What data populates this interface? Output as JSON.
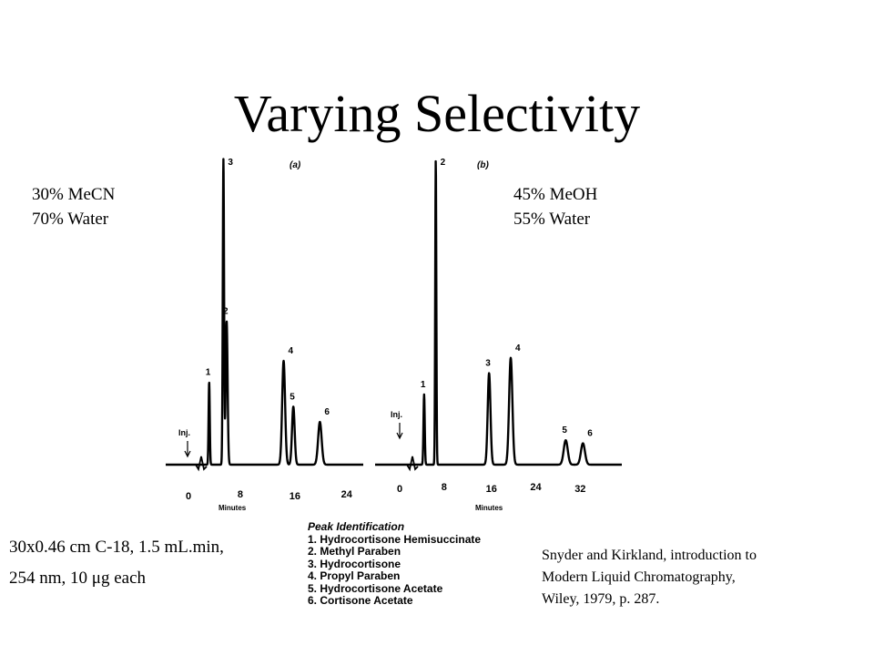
{
  "slide": {
    "title": "Varying Selectivity",
    "conditions_a": [
      "30% MeCN",
      "70% Water"
    ],
    "conditions_b": [
      "45% MeOH",
      "55% Water"
    ],
    "column_info": [
      "30x0.46 cm C-18, 1.5 mL.min,",
      "254 nm, 10 μg each"
    ],
    "reference": [
      "Snyder and Kirkland, introduction to",
      "Modern Liquid Chromatography,",
      "Wiley, 1979, p. 287."
    ],
    "peak_identification": {
      "heading": "Peak Identification",
      "items": [
        "1. Hydrocortisone Hemisuccinate",
        "2. Methyl Paraben",
        "3. Hydrocortisone",
        "4. Propyl Paraben",
        "5. Hydrocortisone Acetate",
        "6. Cortisone Acetate"
      ]
    }
  },
  "chart_data": [
    {
      "type": "line",
      "panel_label": "(a)",
      "xlabel": "Minutes",
      "xlim": [
        0,
        27
      ],
      "xticks": [
        0,
        8,
        16,
        24
      ],
      "xtick_labels": [
        "0",
        "8",
        "16",
        "24"
      ],
      "injection_label": "Inj.",
      "ylabel": "",
      "peaks": [
        {
          "label": "1",
          "time": 3.2,
          "height": 0.27,
          "width": 0.2
        },
        {
          "label": "3",
          "time": 5.4,
          "height": 1.0,
          "width": 0.22
        },
        {
          "label": "2",
          "time": 5.9,
          "height": 0.47,
          "width": 0.32
        },
        {
          "label": "4",
          "time": 14.7,
          "height": 0.34,
          "width": 0.5
        },
        {
          "label": "5",
          "time": 16.2,
          "height": 0.19,
          "width": 0.45
        },
        {
          "label": "6",
          "time": 20.3,
          "height": 0.14,
          "width": 0.6
        }
      ]
    },
    {
      "type": "line",
      "panel_label": "(b)",
      "xlabel": "Minutes",
      "xlim": [
        0,
        40
      ],
      "xticks": [
        0,
        8,
        16,
        24,
        32
      ],
      "xtick_labels": [
        "0",
        "8",
        "16",
        "24",
        "32"
      ],
      "injection_label": "Inj.",
      "ylabel": "",
      "peaks": [
        {
          "label": "1",
          "time": 4.4,
          "height": 0.23,
          "width": 0.25
        },
        {
          "label": "2",
          "time": 6.5,
          "height": 1.0,
          "width": 0.22
        },
        {
          "label": "3",
          "time": 16.1,
          "height": 0.3,
          "width": 0.55
        },
        {
          "label": "4",
          "time": 20.0,
          "height": 0.35,
          "width": 0.65
        },
        {
          "label": "5",
          "time": 29.9,
          "height": 0.08,
          "width": 0.8
        },
        {
          "label": "6",
          "time": 33.0,
          "height": 0.07,
          "width": 0.8
        }
      ]
    }
  ]
}
